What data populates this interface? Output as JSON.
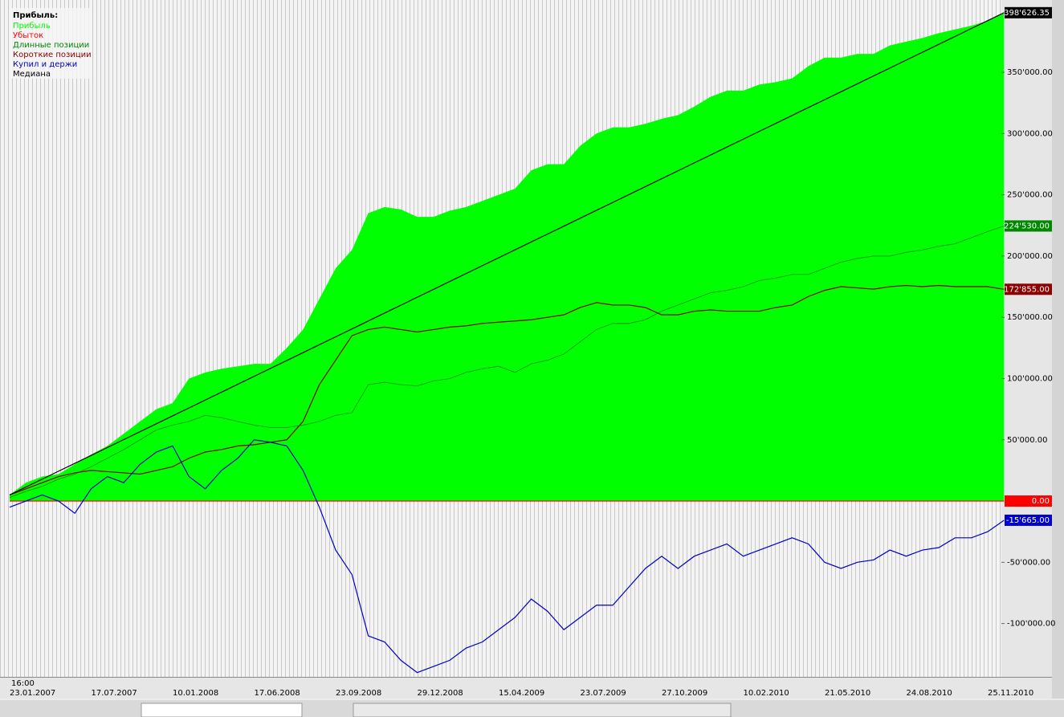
{
  "chart_data": {
    "type": "line",
    "legend_title": "Прибыль:",
    "time_label": "16:00",
    "categories": [
      "23.01.2007",
      null,
      null,
      null,
      null,
      "17.07.2007",
      null,
      null,
      null,
      null,
      "10.01.2008",
      null,
      null,
      null,
      null,
      "17.06.2008",
      null,
      null,
      null,
      null,
      "23.09.2008",
      null,
      null,
      null,
      null,
      "29.12.2008",
      null,
      null,
      null,
      null,
      "15.04.2009",
      null,
      null,
      null,
      null,
      "23.07.2009",
      null,
      null,
      null,
      null,
      "27.10.2009",
      null,
      null,
      null,
      null,
      "10.02.2010",
      null,
      null,
      null,
      null,
      "21.05.2010",
      null,
      null,
      null,
      null,
      "24.08.2010",
      null,
      null,
      null,
      null,
      "25.11.2010",
      null
    ],
    "ylim": [
      -143500,
      409000
    ],
    "yticks": [
      {
        "value": -100000,
        "label": "-100'000.00"
      },
      {
        "value": -50000,
        "label": "-50'000.00"
      },
      {
        "value": 50000,
        "label": "50'000.00"
      },
      {
        "value": 100000,
        "label": "100'000.00"
      },
      {
        "value": 150000,
        "label": "150'000.00"
      },
      {
        "value": 200000,
        "label": "200'000.00"
      },
      {
        "value": 250000,
        "label": "250'000.00"
      },
      {
        "value": 300000,
        "label": "300'000.00"
      },
      {
        "value": 350000,
        "label": "350'000.00"
      }
    ],
    "series": [
      {
        "name": "Прибыль",
        "color": "#00ff00",
        "style": "area",
        "values": [
          5000,
          15000,
          20000,
          22000,
          30000,
          38000,
          45000,
          55000,
          65000,
          75000,
          80000,
          100000,
          105000,
          108000,
          110000,
          112000,
          112000,
          125000,
          140000,
          165000,
          190000,
          205000,
          235000,
          240000,
          238000,
          232000,
          232000,
          237000,
          240000,
          245000,
          250000,
          255000,
          270000,
          275000,
          275000,
          290000,
          300000,
          305000,
          305000,
          308000,
          312000,
          315000,
          322000,
          330000,
          335000,
          335000,
          340000,
          342000,
          345000,
          355000,
          362000,
          362000,
          365000,
          365000,
          372000,
          375000,
          378000,
          382000,
          385000,
          388000,
          392000,
          398626.35
        ]
      },
      {
        "name": "Убыток",
        "color": "#ff0000",
        "style": "line",
        "values": [
          0,
          0,
          0,
          0,
          0,
          0,
          0,
          0,
          0,
          0,
          0,
          0,
          0,
          0,
          0,
          0,
          0,
          0,
          0,
          0,
          0,
          0,
          0,
          0,
          0,
          0,
          0,
          0,
          0,
          0,
          0,
          0,
          0,
          0,
          0,
          0,
          0,
          0,
          0,
          0,
          0,
          0,
          0,
          0,
          0,
          0,
          0,
          0,
          0,
          0,
          0,
          0,
          0,
          0,
          0,
          0,
          0,
          0,
          0,
          0,
          0,
          0
        ],
        "value_labels": [
          null,
          null,
          null,
          null,
          null,
          null,
          null,
          null,
          null,
          null,
          null,
          null,
          null,
          null,
          null,
          null,
          null,
          null,
          null,
          null,
          null,
          null,
          null,
          null,
          null,
          null,
          null,
          null,
          null,
          null,
          null,
          null,
          null,
          null,
          null,
          null,
          null,
          null,
          null,
          null,
          null,
          null,
          null,
          null,
          null,
          null,
          null,
          null,
          null,
          null,
          null,
          null,
          null,
          null,
          null,
          null,
          null,
          null,
          null,
          null,
          null,
          "0.00"
        ]
      },
      {
        "name": "Длинные позиции",
        "color": "#008800",
        "style": "line",
        "values": [
          3000,
          8000,
          12000,
          18000,
          22000,
          28000,
          35000,
          42000,
          50000,
          58000,
          62000,
          65000,
          70000,
          68000,
          65000,
          62000,
          60000,
          60000,
          62000,
          65000,
          70000,
          72000,
          95000,
          97000,
          95000,
          94000,
          98000,
          100000,
          105000,
          108000,
          110000,
          105000,
          112000,
          115000,
          120000,
          130000,
          140000,
          145000,
          145000,
          148000,
          155000,
          160000,
          165000,
          170000,
          172000,
          175000,
          180000,
          182000,
          185000,
          185000,
          190000,
          195000,
          198000,
          200000,
          200000,
          203000,
          205000,
          208000,
          210000,
          215000,
          220000,
          224530
        ],
        "value_labels": [
          null,
          null,
          null,
          null,
          null,
          null,
          null,
          null,
          null,
          null,
          null,
          null,
          null,
          null,
          null,
          null,
          null,
          null,
          null,
          null,
          null,
          null,
          null,
          null,
          null,
          null,
          null,
          null,
          null,
          null,
          null,
          null,
          null,
          null,
          null,
          null,
          null,
          null,
          null,
          null,
          null,
          null,
          null,
          null,
          null,
          null,
          null,
          null,
          null,
          null,
          null,
          null,
          null,
          null,
          null,
          null,
          null,
          null,
          null,
          null,
          null,
          "224'530.00"
        ]
      },
      {
        "name": "Короткие позиции",
        "color": "#8b0000",
        "style": "line",
        "values": [
          5000,
          10000,
          15000,
          20000,
          23000,
          25000,
          24000,
          23000,
          22000,
          25000,
          28000,
          35000,
          40000,
          42000,
          45000,
          46000,
          48000,
          50000,
          65000,
          95000,
          115000,
          135000,
          140000,
          142000,
          140000,
          138000,
          140000,
          142000,
          143000,
          145000,
          146000,
          147000,
          148000,
          150000,
          152000,
          158000,
          162000,
          160000,
          160000,
          158000,
          152000,
          152000,
          155000,
          156000,
          155000,
          155000,
          155000,
          158000,
          160000,
          167000,
          172000,
          175000,
          174000,
          173000,
          175000,
          176000,
          175000,
          176000,
          175000,
          175000,
          175000,
          172855
        ],
        "value_labels": [
          null,
          null,
          null,
          null,
          null,
          null,
          null,
          null,
          null,
          null,
          null,
          null,
          null,
          null,
          null,
          null,
          null,
          null,
          null,
          null,
          null,
          null,
          null,
          null,
          null,
          null,
          null,
          null,
          null,
          null,
          null,
          null,
          null,
          null,
          null,
          null,
          null,
          null,
          null,
          null,
          null,
          null,
          null,
          null,
          null,
          null,
          null,
          null,
          null,
          null,
          null,
          null,
          null,
          null,
          null,
          null,
          null,
          null,
          null,
          null,
          null,
          "172'855.00"
        ]
      },
      {
        "name": "Купил и держи",
        "color": "#0000cc",
        "style": "line",
        "values": [
          -5000,
          0,
          5000,
          0,
          -10000,
          10000,
          20000,
          15000,
          30000,
          40000,
          45000,
          20000,
          10000,
          25000,
          35000,
          50000,
          48000,
          45000,
          25000,
          -5000,
          -40000,
          -60000,
          -110000,
          -115000,
          -130000,
          -140000,
          -135000,
          -130000,
          -120000,
          -115000,
          -105000,
          -95000,
          -80000,
          -90000,
          -105000,
          -95000,
          -85000,
          -85000,
          -70000,
          -55000,
          -45000,
          -55000,
          -45000,
          -40000,
          -35000,
          -45000,
          -40000,
          -35000,
          -30000,
          -35000,
          -50000,
          -55000,
          -50000,
          -48000,
          -40000,
          -45000,
          -40000,
          -38000,
          -30000,
          -30000,
          -25000,
          -15665
        ],
        "value_labels": [
          null,
          null,
          null,
          null,
          null,
          null,
          null,
          null,
          null,
          null,
          null,
          null,
          null,
          null,
          null,
          null,
          null,
          null,
          null,
          null,
          null,
          null,
          null,
          null,
          null,
          null,
          null,
          null,
          null,
          null,
          null,
          null,
          null,
          null,
          null,
          null,
          null,
          null,
          null,
          null,
          null,
          null,
          null,
          null,
          null,
          null,
          null,
          null,
          null,
          null,
          null,
          null,
          null,
          null,
          null,
          null,
          null,
          null,
          null,
          null,
          null,
          "-15'665.00"
        ]
      },
      {
        "name": "Медиана",
        "color": "#000000",
        "style": "line",
        "values": [
          5000,
          11453,
          17906,
          24359,
          30812,
          37265,
          43718,
          50171,
          56624,
          63077,
          69530,
          75983,
          82436,
          88889,
          95342,
          101795,
          108248,
          114701,
          121154,
          127607,
          134060,
          140513,
          146966,
          153419,
          159872,
          166325,
          172778,
          179231,
          185684,
          192137,
          198590,
          205043,
          211496,
          217949,
          224402,
          230855,
          237308,
          243761,
          250214,
          256667,
          263120,
          269573,
          276026,
          282479,
          288932,
          295385,
          301838,
          308291,
          314744,
          321197,
          327650,
          334103,
          340556,
          347009,
          353462,
          359915,
          366368,
          372821,
          379274,
          385727,
          392180,
          398626.35
        ],
        "value_labels": [
          null,
          null,
          null,
          null,
          null,
          null,
          null,
          null,
          null,
          null,
          null,
          null,
          null,
          null,
          null,
          null,
          null,
          null,
          null,
          null,
          null,
          null,
          null,
          null,
          null,
          null,
          null,
          null,
          null,
          null,
          null,
          null,
          null,
          null,
          null,
          null,
          null,
          null,
          null,
          null,
          null,
          null,
          null,
          null,
          null,
          null,
          null,
          null,
          null,
          null,
          null,
          null,
          null,
          null,
          null,
          null,
          null,
          null,
          null,
          null,
          null,
          "398'626.35"
        ]
      }
    ]
  }
}
